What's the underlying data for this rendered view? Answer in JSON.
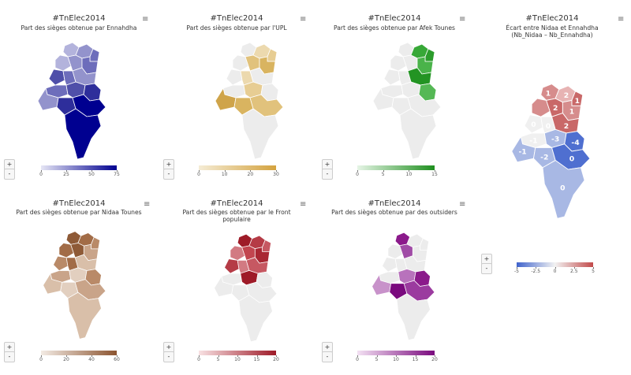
{
  "panels": [
    {
      "id": "ennahdha",
      "title": "#TnElec2014",
      "subtitle": "Part des sièges obtenue par Ennahdha",
      "colors": [
        "#b3b3dc",
        "#9393cc",
        "#6d6dbb",
        "#4f4fa9",
        "#2e2e9b",
        "#000090"
      ],
      "legend": {
        "from": "#e6e6f5",
        "to": "#000090",
        "ticks": [
          "0",
          "25",
          "50",
          "75"
        ]
      },
      "zoom": {
        "in": "+",
        "out": "-"
      }
    },
    {
      "id": "upl",
      "title": "#TnElec2014",
      "subtitle": "Part des sièges obtenue par l'UPL",
      "colors": [
        "#ecd9ae",
        "#e7cd93",
        "#e1c27c",
        "#d9b460",
        "#cfa44a",
        "#c79a3c"
      ],
      "legend": {
        "from": "#f5ecd5",
        "to": "#d4a33f",
        "ticks": [
          "0",
          "10",
          "20",
          "30"
        ]
      },
      "zoom": {
        "in": "+",
        "out": "-"
      }
    },
    {
      "id": "afek",
      "title": "#TnElec2014",
      "subtitle": "Part des sièges obtenue par Afek Tounes",
      "colors": [
        "#37a837",
        "#2c9c2c",
        "#4ab34a",
        "#239423",
        "#55b855",
        "#1f8f1f"
      ],
      "legend": {
        "from": "#e6f5e6",
        "to": "#1f8f1f",
        "ticks": [
          "0",
          "5",
          "10",
          "15"
        ]
      },
      "zoom": {
        "in": "+",
        "out": "-"
      }
    },
    {
      "id": "nidaa",
      "title": "#TnElec2014",
      "subtitle": "Part des sièges obtenue par Nidaa Tounes",
      "colors": [
        "#8e5a37",
        "#a26c47",
        "#b98a68",
        "#c9a489",
        "#d9bfa9",
        "#e2cfbf"
      ],
      "legend": {
        "from": "#f3ebe4",
        "to": "#8b5430",
        "ticks": [
          "0",
          "20",
          "40",
          "60"
        ]
      },
      "zoom": {
        "in": "+",
        "out": "-"
      }
    },
    {
      "id": "front",
      "title": "#TnElec2014",
      "subtitle": "Part des sièges obtenue par le Front populaire",
      "colors": [
        "#9e1b28",
        "#b53b46",
        "#c65862",
        "#d27a82",
        "#c2454f",
        "#a92733"
      ],
      "legend": {
        "from": "#f8e1e3",
        "to": "#9e1b28",
        "ticks": [
          "0",
          "5",
          "10",
          "15",
          "20"
        ]
      },
      "zoom": {
        "in": "+",
        "out": "-"
      }
    },
    {
      "id": "outsiders",
      "title": "#TnElec2014",
      "subtitle": "Part des sièges obtenue par des outsiders",
      "colors": [
        "#8b1a8b",
        "#a04ca6",
        "#b872bc",
        "#c892ca",
        "#7a0a7e",
        "#9b3b9f"
      ],
      "legend": {
        "from": "#f3e1f3",
        "to": "#7a0a7e",
        "ticks": [
          "0",
          "5",
          "10",
          "15",
          "20"
        ]
      },
      "zoom": {
        "in": "+",
        "out": "-"
      }
    },
    {
      "id": "ecart",
      "title": "#TnElec2014",
      "subtitle": "Écart entre Nidaa et Ennahdha (Nb_Nidaa – Nb_Ennahdha)",
      "colors": [
        "#d68c8c",
        "#e7b3b3",
        "#c96868",
        "#f0f0f0",
        "#a8b8e4",
        "#4f6fd0"
      ],
      "legend": {
        "from": "#3f63cc",
        "mid": "#f2f2f2",
        "to": "#c24a4a",
        "ticks": [
          "-5",
          "-2.5",
          "0",
          "2.5",
          "5"
        ]
      },
      "region_values": [
        "1",
        "2",
        "1",
        "2",
        "1",
        "0",
        "0",
        "2",
        "-1",
        "-3",
        "-4",
        "-1",
        "-2",
        "0",
        "0"
      ],
      "zoom": {
        "in": "+",
        "out": "-"
      }
    }
  ],
  "menu_icon": "≡",
  "gray": "#ececec"
}
